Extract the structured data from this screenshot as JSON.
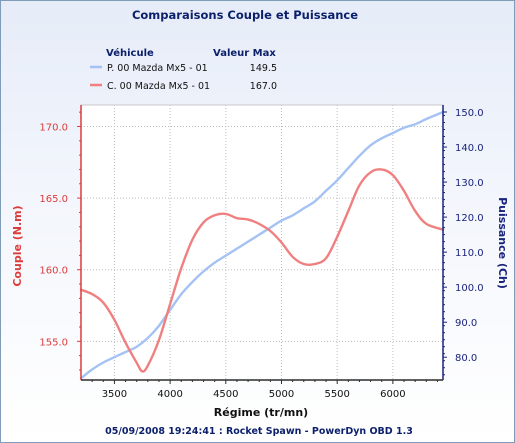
{
  "chart_data": {
    "type": "line",
    "title": "Comparaisons Couple et Puissance",
    "xlabel": "Régime (tr/mn)",
    "ylabel_left": "Couple (N.m)",
    "ylabel_right": "Puissance (Ch)",
    "footer": "05/09/2008 19:24:41 : Rocket Spawn - PowerDyn OBD 1.3",
    "xlim": [
      3200,
      6450
    ],
    "x_ticks": [
      3500,
      4000,
      4500,
      5000,
      5500,
      6000
    ],
    "x_tick_labels": [
      "3500",
      "4000",
      "4500",
      "5000",
      "5500",
      "6000"
    ],
    "ylim_left": [
      152.3,
      171.5
    ],
    "y_ticks_left": [
      155.0,
      160.0,
      165.0,
      170.0
    ],
    "y_tick_labels_left": [
      "155.0",
      "160.0",
      "165.0",
      "170.0"
    ],
    "ylim_right": [
      73.5,
      152.0
    ],
    "y_ticks_right": [
      80,
      90,
      100,
      110,
      120,
      130,
      140,
      150
    ],
    "y_tick_labels_right": [
      "80.0",
      "90.0",
      "100.0",
      "110.0",
      "120.0",
      "130.0",
      "140.0",
      "150.0"
    ],
    "grid": true,
    "legend_headers": {
      "vehicle": "Véhicule",
      "max": "Valeur Max"
    },
    "series": [
      {
        "name": "P. 00 Mazda Mx5 - 01",
        "max_label": "149.5",
        "axis": "right",
        "color": "#a4c2f4",
        "x": [
          3200,
          3300,
          3400,
          3500,
          3600,
          3700,
          3800,
          3900,
          4000,
          4100,
          4200,
          4300,
          4400,
          4500,
          4600,
          4700,
          4800,
          4900,
          5000,
          5100,
          5200,
          5300,
          5400,
          5500,
          5600,
          5700,
          5800,
          5900,
          6000,
          6100,
          6200,
          6300,
          6450
        ],
        "y": [
          74.0,
          76.5,
          78.5,
          80.0,
          81.5,
          83.0,
          85.5,
          89.0,
          93.5,
          98.0,
          101.5,
          104.5,
          107.0,
          109.0,
          111.0,
          113.0,
          115.0,
          117.0,
          119.0,
          120.5,
          122.5,
          124.5,
          127.5,
          130.5,
          134.0,
          137.5,
          140.5,
          142.5,
          144.0,
          145.5,
          146.5,
          148.0,
          150.0
        ]
      },
      {
        "name": "C. 00 Mazda Mx5 - 01",
        "max_label": "167.0",
        "axis": "left",
        "color": "#f08080",
        "x": [
          3200,
          3300,
          3400,
          3500,
          3600,
          3700,
          3750,
          3800,
          3900,
          4000,
          4100,
          4200,
          4300,
          4400,
          4500,
          4600,
          4700,
          4800,
          4900,
          5000,
          5100,
          5200,
          5300,
          5400,
          5500,
          5600,
          5700,
          5800,
          5900,
          6000,
          6100,
          6200,
          6300,
          6450
        ],
        "y": [
          158.6,
          158.3,
          157.7,
          156.5,
          154.9,
          153.5,
          152.9,
          153.3,
          155.1,
          157.6,
          160.1,
          162.1,
          163.3,
          163.8,
          163.9,
          163.6,
          163.5,
          163.2,
          162.7,
          161.9,
          160.9,
          160.4,
          160.4,
          160.8,
          162.3,
          164.1,
          165.9,
          166.8,
          167.0,
          166.6,
          165.5,
          164.1,
          163.2,
          162.8
        ]
      }
    ]
  }
}
